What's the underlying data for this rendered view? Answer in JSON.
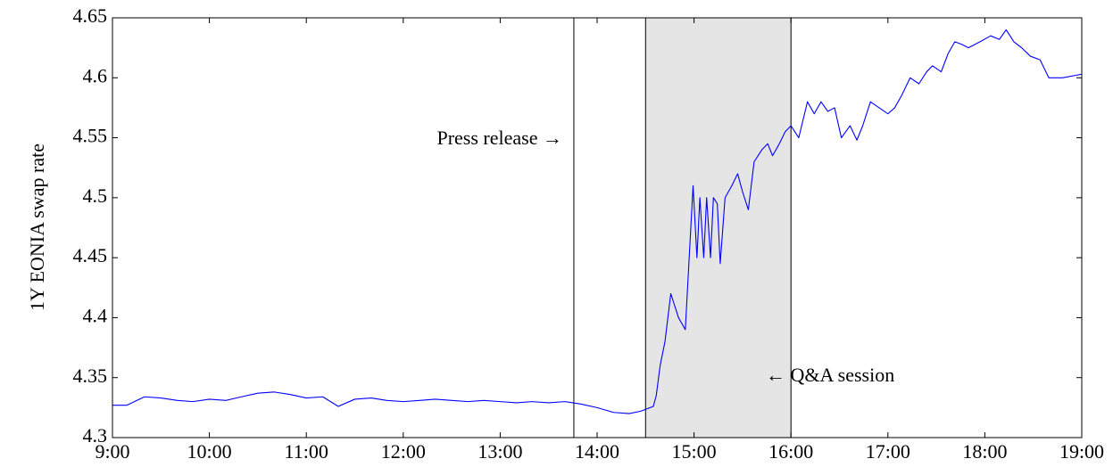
{
  "chart_data": {
    "type": "line",
    "ylabel": "1Y EONIA swap rate",
    "annotations": [
      "Press release →",
      "← Q&A session"
    ],
    "event_line": 13.76,
    "shaded_range": [
      14.5,
      16.0
    ],
    "xlim": [
      9,
      19
    ],
    "ylim": [
      4.3,
      4.65
    ],
    "xticks": [
      {
        "value": 9,
        "label": "9:00"
      },
      {
        "value": 10,
        "label": "10:00"
      },
      {
        "value": 11,
        "label": "11:00"
      },
      {
        "value": 12,
        "label": "12:00"
      },
      {
        "value": 13,
        "label": "13:00"
      },
      {
        "value": 14,
        "label": "14:00"
      },
      {
        "value": 15,
        "label": "15:00"
      },
      {
        "value": 16,
        "label": "16:00"
      },
      {
        "value": 17,
        "label": "17:00"
      },
      {
        "value": 18,
        "label": "18:00"
      },
      {
        "value": 19,
        "label": "19:00"
      }
    ],
    "yticks": [
      4.3,
      4.35,
      4.4,
      4.45,
      4.5,
      4.55,
      4.6,
      4.65
    ],
    "shade_color": "#e5e5e5",
    "x": [
      9.0,
      9.15,
      9.33,
      9.5,
      9.67,
      9.83,
      10.0,
      10.17,
      10.33,
      10.5,
      10.67,
      10.83,
      11.0,
      11.17,
      11.33,
      11.5,
      11.67,
      11.83,
      12.0,
      12.17,
      12.33,
      12.5,
      12.67,
      12.83,
      13.0,
      13.17,
      13.33,
      13.5,
      13.67,
      13.83,
      14.0,
      14.17,
      14.33,
      14.45,
      14.58,
      14.61,
      14.65,
      14.7,
      14.76,
      14.84,
      14.91,
      14.95,
      14.99,
      15.03,
      15.06,
      15.1,
      15.13,
      15.17,
      15.2,
      15.24,
      15.27,
      15.32,
      15.39,
      15.45,
      15.5,
      15.56,
      15.62,
      15.7,
      15.76,
      15.81,
      15.88,
      15.94,
      16.0,
      16.08,
      16.17,
      16.24,
      16.31,
      16.38,
      16.45,
      16.52,
      16.61,
      16.68,
      16.74,
      16.82,
      16.91,
      17.0,
      17.07,
      17.14,
      17.23,
      17.32,
      17.4,
      17.46,
      17.55,
      17.62,
      17.69,
      17.76,
      17.83,
      17.95,
      18.06,
      18.15,
      18.22,
      18.3,
      18.38,
      18.47,
      18.57,
      18.66,
      18.8,
      19.0
    ],
    "series": [
      {
        "name": null,
        "color": "#0000ff",
        "values": [
          4.327,
          4.327,
          4.334,
          4.333,
          4.331,
          4.33,
          4.332,
          4.331,
          4.334,
          4.337,
          4.338,
          4.336,
          4.333,
          4.334,
          4.326,
          4.332,
          4.333,
          4.331,
          4.33,
          4.331,
          4.332,
          4.331,
          4.33,
          4.331,
          4.33,
          4.329,
          4.33,
          4.329,
          4.33,
          4.328,
          4.325,
          4.321,
          4.32,
          4.322,
          4.326,
          4.335,
          4.36,
          4.38,
          4.42,
          4.4,
          4.39,
          4.45,
          4.51,
          4.45,
          4.5,
          4.45,
          4.5,
          4.45,
          4.5,
          4.495,
          4.445,
          4.5,
          4.51,
          4.52,
          4.505,
          4.49,
          4.53,
          4.54,
          4.545,
          4.535,
          4.545,
          4.555,
          4.56,
          4.55,
          4.58,
          4.57,
          4.58,
          4.572,
          4.575,
          4.55,
          4.56,
          4.548,
          4.56,
          4.58,
          4.575,
          4.57,
          4.575,
          4.585,
          4.6,
          4.595,
          4.605,
          4.61,
          4.605,
          4.62,
          4.63,
          4.628,
          4.625,
          4.63,
          4.635,
          4.632,
          4.64,
          4.63,
          4.625,
          4.618,
          4.615,
          4.6,
          4.6,
          4.603
        ]
      }
    ]
  }
}
